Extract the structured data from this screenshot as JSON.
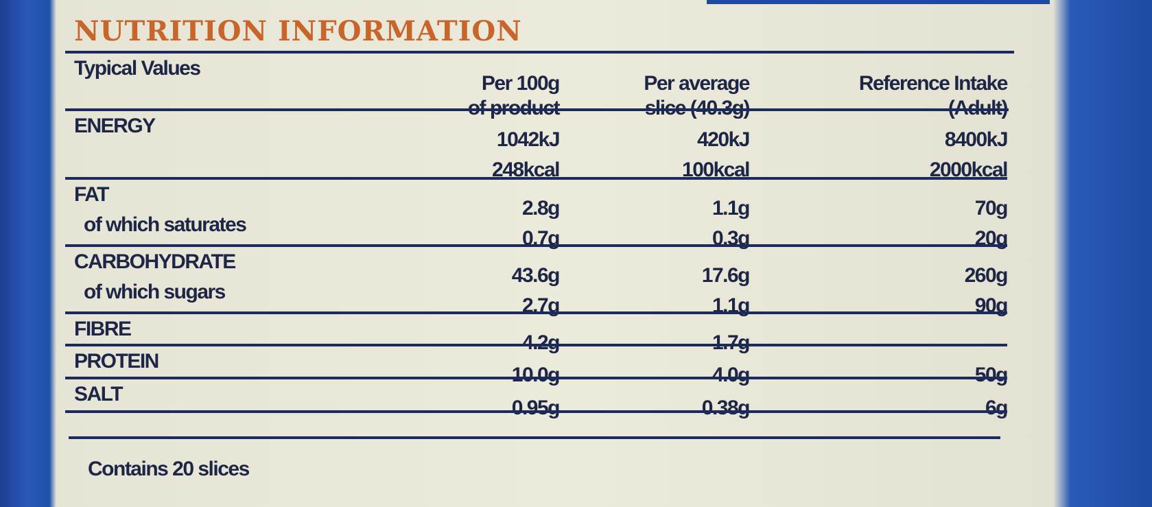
{
  "title": "NUTRITION INFORMATION",
  "table": {
    "header": [
      [
        "Typical Values"
      ],
      [
        "Per 100g",
        "of product"
      ],
      [
        "Per average",
        "slice (40.3g)"
      ],
      [
        "Reference Intake",
        "(Adult)"
      ]
    ],
    "rows": [
      {
        "label": [
          "ENERGY"
        ],
        "values": [
          [
            "1042kJ",
            "248kcal"
          ],
          [
            "420kJ",
            "100kcal"
          ],
          [
            "8400kJ",
            "2000kcal"
          ]
        ]
      },
      {
        "label": [
          "FAT",
          "of which saturates"
        ],
        "values": [
          [
            "2.8g",
            "0.7g"
          ],
          [
            "1.1g",
            "0.3g"
          ],
          [
            "70g",
            "20g"
          ]
        ]
      },
      {
        "label": [
          "CARBOHYDRATE",
          "of which sugars"
        ],
        "values": [
          [
            "43.6g",
            "2.7g"
          ],
          [
            "17.6g",
            "1.1g"
          ],
          [
            "260g",
            "90g"
          ]
        ]
      },
      {
        "label": [
          "FIBRE"
        ],
        "values": [
          [
            "4.2g"
          ],
          [
            "1.7g"
          ],
          []
        ]
      },
      {
        "label": [
          "PROTEIN"
        ],
        "values": [
          [
            "10.0g"
          ],
          [
            "4.0g"
          ],
          [
            "50g"
          ]
        ]
      },
      {
        "label": [
          "SALT"
        ],
        "values": [
          [
            "0.95g"
          ],
          [
            "0.38g"
          ],
          [
            "6g"
          ]
        ]
      }
    ]
  },
  "footer": "Contains 20 slices"
}
